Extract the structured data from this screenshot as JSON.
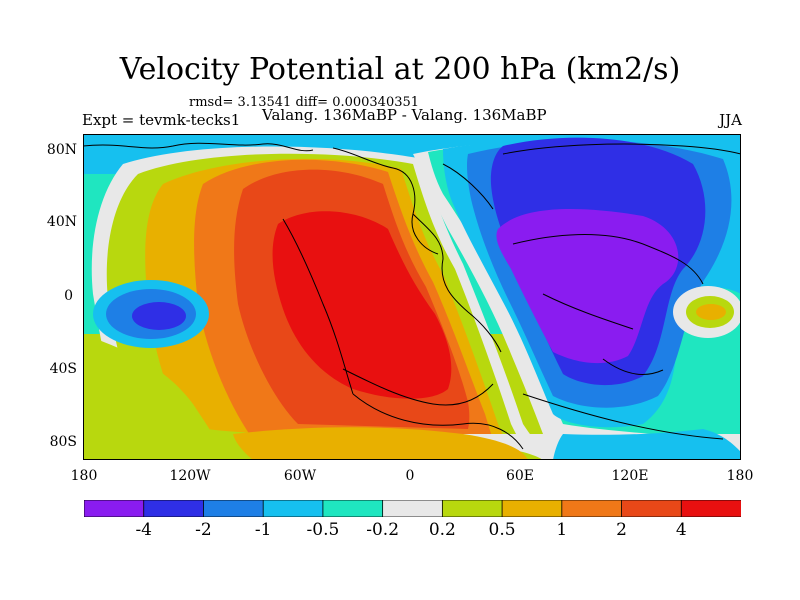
{
  "title": "Velocity Potential at 200 hPa (km2/s)",
  "stats_text": "rmsd= 3.13541 diff= 0.000340351",
  "experiment_label": "Expt = tevmk-tecks1",
  "subtitle": "Valang. 136MaBP - Valang. 136MaBP",
  "season": "JJA",
  "y_ticks": [
    "80N",
    "40N",
    "0",
    "40S",
    "80S"
  ],
  "x_ticks": [
    "180",
    "120W",
    "60W",
    "0",
    "60E",
    "120E",
    "180"
  ],
  "colorbar": {
    "labels": [
      "-4",
      "-2",
      "-1",
      "-0.5",
      "-0.2",
      "0.2",
      "0.5",
      "1",
      "2",
      "4"
    ],
    "colors": [
      "#8a1cf0",
      "#2f2fe6",
      "#1e7fe6",
      "#16c0ef",
      "#1fe6c0",
      "#e8e8e8",
      "#b8d80e",
      "#e8b000",
      "#f07818",
      "#e84818",
      "#e81010"
    ]
  },
  "palette": {
    "deep_purple": "#8a1cf0",
    "blue": "#2f2fe6",
    "mid_blue": "#1e7fe6",
    "cyan": "#16c0ef",
    "teal": "#1fe6c0",
    "neutral": "#e8e8e8",
    "yellow_green": "#b8d80e",
    "gold": "#e8b000",
    "orange": "#f07818",
    "red_orange": "#e84818",
    "red": "#e81010"
  }
}
